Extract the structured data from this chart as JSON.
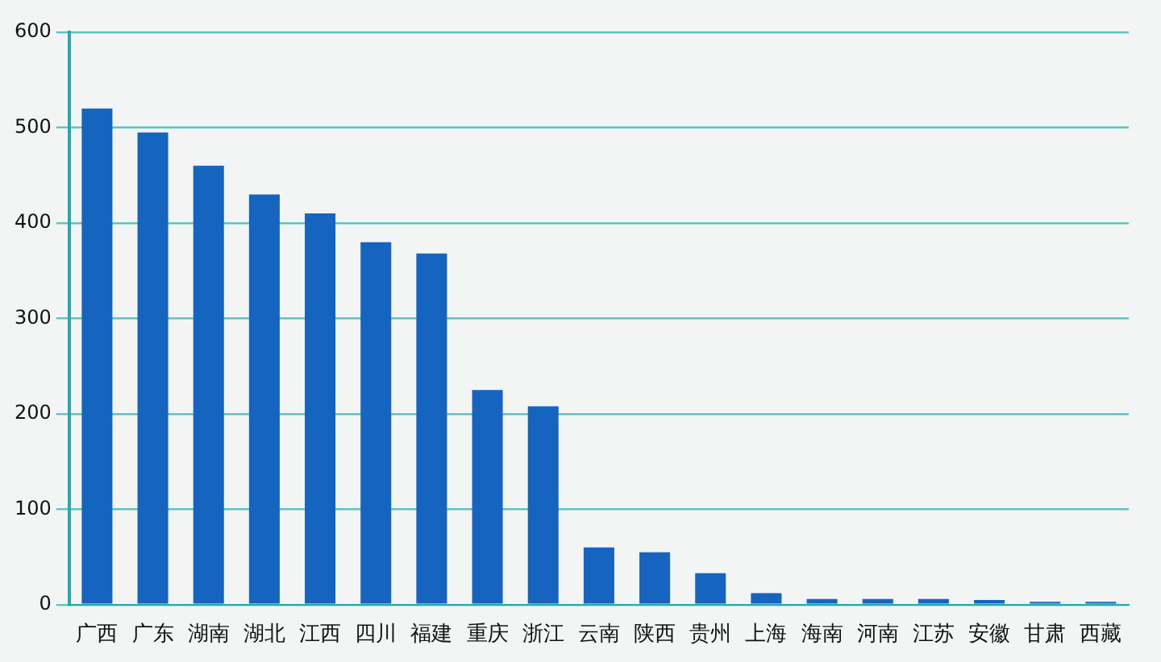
{
  "chart_data": {
    "type": "bar",
    "categories": [
      "广西",
      "广东",
      "湖南",
      "湖北",
      "江西",
      "四川",
      "福建",
      "重庆",
      "浙江",
      "云南",
      "陕西",
      "贵州",
      "上海",
      "海南",
      "河南",
      "江苏",
      "安徽",
      "甘肃",
      "西藏"
    ],
    "values": [
      520,
      495,
      460,
      430,
      410,
      380,
      368,
      225,
      208,
      60,
      55,
      33,
      12,
      6,
      6,
      6,
      5,
      3,
      3
    ],
    "color": "#1565c0",
    "ylim": [
      0,
      600
    ],
    "yticks": [
      0,
      100,
      200,
      300,
      400,
      500,
      600
    ],
    "grid": "y"
  }
}
